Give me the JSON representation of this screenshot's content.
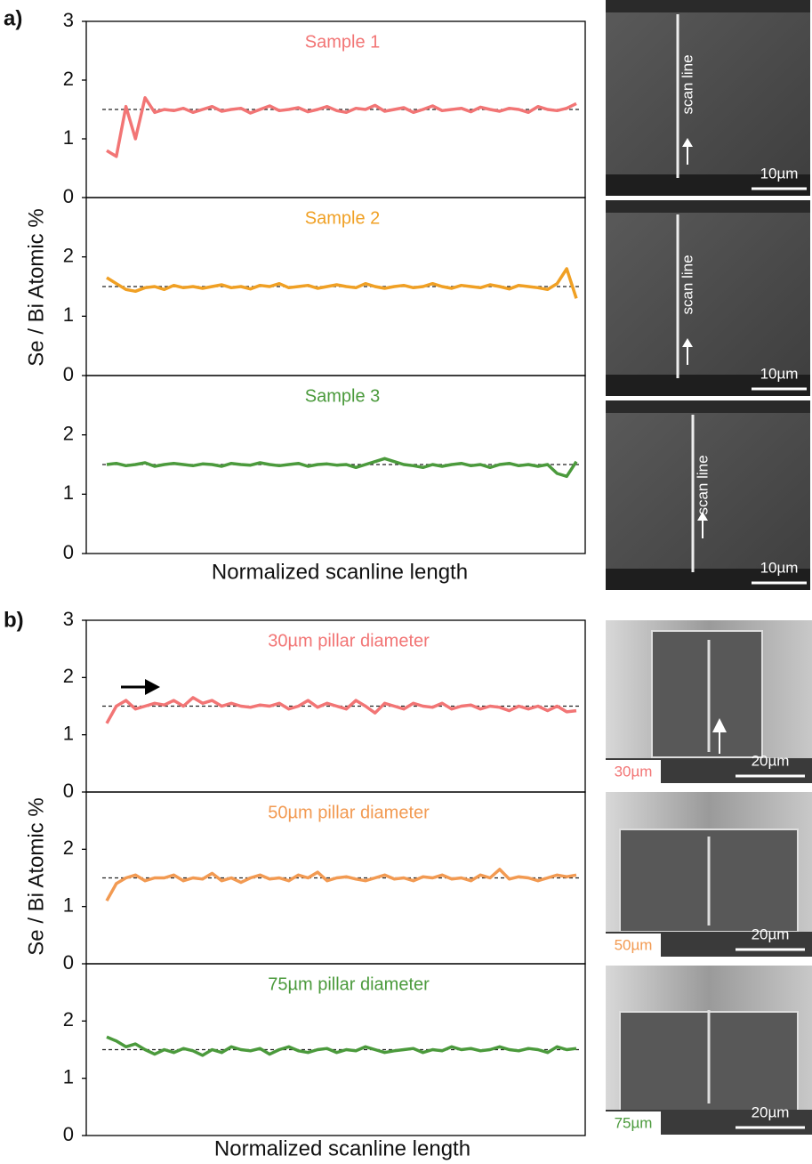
{
  "figure": {
    "panels": [
      {
        "label": "a)",
        "y_label": "Se / Bi Atomic %",
        "x_label": "Normalized scanline length",
        "images": [
          {
            "annotation": "scan line",
            "scale_bar": "10µm"
          },
          {
            "annotation": "scan line",
            "scale_bar": "10µm"
          },
          {
            "annotation": "scan line",
            "scale_bar": "10µm"
          }
        ]
      },
      {
        "label": "b)",
        "y_label": "Se / Bi Atomic %",
        "x_label": "Normalized scanline length",
        "images": [
          {
            "size_label": "30µm",
            "scale_bar": "20µm"
          },
          {
            "size_label": "50µm",
            "scale_bar": "20µm"
          },
          {
            "size_label": "75µm",
            "scale_bar": "20µm"
          }
        ]
      }
    ]
  },
  "chart_data": [
    {
      "type": "line",
      "title": "Sample 1",
      "color": "#f27575",
      "ylim": [
        0,
        3
      ],
      "yticks": [
        0,
        1,
        2,
        3
      ],
      "reference_line": 1.5,
      "values": [
        0.8,
        0.7,
        1.55,
        1.0,
        1.7,
        1.45,
        1.5,
        1.48,
        1.52,
        1.45,
        1.5,
        1.55,
        1.47,
        1.5,
        1.52,
        1.44,
        1.5,
        1.56,
        1.48,
        1.5,
        1.53,
        1.46,
        1.5,
        1.55,
        1.48,
        1.45,
        1.52,
        1.5,
        1.57,
        1.47,
        1.5,
        1.53,
        1.45,
        1.5,
        1.56,
        1.48,
        1.5,
        1.52,
        1.46,
        1.54,
        1.5,
        1.47,
        1.52,
        1.5,
        1.45,
        1.55,
        1.5,
        1.48,
        1.52,
        1.6
      ]
    },
    {
      "type": "line",
      "title": "Sample 2",
      "color": "#f0a024",
      "ylim": [
        0,
        3
      ],
      "yticks": [
        0,
        1,
        2
      ],
      "reference_line": 1.5,
      "values": [
        1.65,
        1.55,
        1.45,
        1.42,
        1.48,
        1.5,
        1.45,
        1.52,
        1.48,
        1.5,
        1.47,
        1.5,
        1.53,
        1.48,
        1.5,
        1.46,
        1.52,
        1.5,
        1.55,
        1.48,
        1.5,
        1.52,
        1.47,
        1.5,
        1.53,
        1.5,
        1.48,
        1.55,
        1.5,
        1.47,
        1.5,
        1.52,
        1.48,
        1.5,
        1.55,
        1.5,
        1.47,
        1.52,
        1.5,
        1.48,
        1.53,
        1.5,
        1.46,
        1.52,
        1.5,
        1.48,
        1.45,
        1.55,
        1.8,
        1.3
      ]
    },
    {
      "type": "line",
      "title": "Sample 3",
      "color": "#4b9a3c",
      "ylim": [
        0,
        3
      ],
      "yticks": [
        0,
        1,
        2
      ],
      "reference_line": 1.5,
      "values": [
        1.5,
        1.52,
        1.48,
        1.5,
        1.53,
        1.47,
        1.5,
        1.52,
        1.5,
        1.48,
        1.51,
        1.5,
        1.47,
        1.52,
        1.5,
        1.49,
        1.53,
        1.5,
        1.48,
        1.5,
        1.52,
        1.47,
        1.5,
        1.51,
        1.49,
        1.5,
        1.45,
        1.5,
        1.55,
        1.6,
        1.55,
        1.5,
        1.48,
        1.45,
        1.5,
        1.47,
        1.5,
        1.52,
        1.48,
        1.5,
        1.45,
        1.5,
        1.52,
        1.48,
        1.5,
        1.47,
        1.5,
        1.35,
        1.3,
        1.55
      ]
    },
    {
      "type": "line",
      "title": "30µm pillar diameter",
      "color": "#f27575",
      "ylim": [
        0,
        3
      ],
      "yticks": [
        0,
        1,
        2,
        3
      ],
      "reference_line": 1.5,
      "values": [
        1.2,
        1.5,
        1.6,
        1.45,
        1.5,
        1.55,
        1.52,
        1.6,
        1.5,
        1.65,
        1.55,
        1.6,
        1.5,
        1.55,
        1.5,
        1.48,
        1.52,
        1.5,
        1.55,
        1.45,
        1.5,
        1.6,
        1.48,
        1.55,
        1.5,
        1.45,
        1.6,
        1.5,
        1.38,
        1.55,
        1.5,
        1.45,
        1.55,
        1.5,
        1.48,
        1.55,
        1.45,
        1.5,
        1.52,
        1.45,
        1.5,
        1.48,
        1.42,
        1.5,
        1.45,
        1.5,
        1.42,
        1.5,
        1.4,
        1.42
      ]
    },
    {
      "type": "line",
      "title": "50µm pillar diameter",
      "color": "#f29a52",
      "ylim": [
        0,
        3
      ],
      "yticks": [
        0,
        1,
        2
      ],
      "reference_line": 1.5,
      "values": [
        1.1,
        1.4,
        1.5,
        1.55,
        1.45,
        1.5,
        1.5,
        1.55,
        1.45,
        1.5,
        1.48,
        1.58,
        1.45,
        1.5,
        1.42,
        1.5,
        1.55,
        1.48,
        1.5,
        1.45,
        1.55,
        1.5,
        1.6,
        1.45,
        1.5,
        1.52,
        1.48,
        1.45,
        1.5,
        1.55,
        1.48,
        1.5,
        1.45,
        1.52,
        1.5,
        1.55,
        1.48,
        1.5,
        1.45,
        1.55,
        1.5,
        1.65,
        1.48,
        1.52,
        1.5,
        1.45,
        1.5,
        1.55,
        1.52,
        1.55
      ]
    },
    {
      "type": "line",
      "title": "75µm pillar diameter",
      "color": "#4b9a3c",
      "ylim": [
        0,
        3
      ],
      "yticks": [
        0,
        1,
        2
      ],
      "reference_line": 1.5,
      "values": [
        1.72,
        1.65,
        1.55,
        1.6,
        1.5,
        1.42,
        1.5,
        1.45,
        1.52,
        1.48,
        1.4,
        1.5,
        1.45,
        1.55,
        1.5,
        1.48,
        1.52,
        1.42,
        1.5,
        1.55,
        1.48,
        1.45,
        1.5,
        1.52,
        1.45,
        1.5,
        1.48,
        1.55,
        1.5,
        1.45,
        1.48,
        1.5,
        1.52,
        1.45,
        1.5,
        1.48,
        1.55,
        1.5,
        1.52,
        1.48,
        1.5,
        1.55,
        1.5,
        1.48,
        1.52,
        1.5,
        1.45,
        1.55,
        1.5,
        1.52
      ]
    }
  ]
}
